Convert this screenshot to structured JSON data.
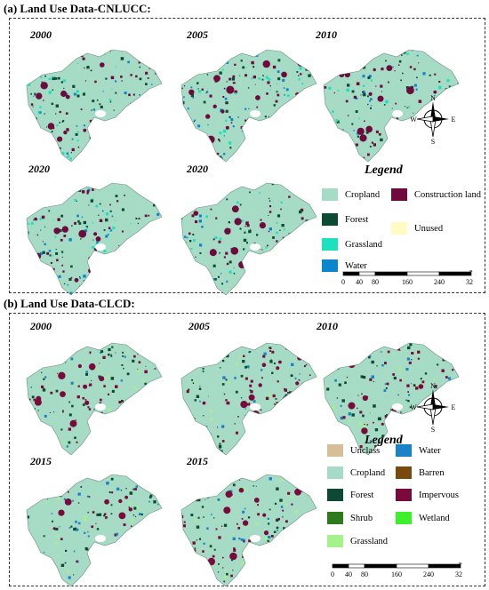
{
  "panel_a": {
    "title": "(a) Land Use Data-CNLUCC:",
    "years": [
      "2000",
      "2005",
      "2010",
      "2020",
      "2020"
    ],
    "legend_title": "Legend",
    "legend": [
      {
        "label": "Cropland",
        "color": "#a6dcc6"
      },
      {
        "label": "Construction land",
        "color": "#6e0a3c"
      },
      {
        "label": "Forest",
        "color": "#0e4a33"
      },
      {
        "label": "Unused",
        "color": "#fffbc4"
      },
      {
        "label": "Grassland",
        "color": "#1de0bd"
      },
      {
        "label": "Water",
        "color": "#0a86cc"
      }
    ],
    "scale": {
      "unit": "km",
      "ticks": [
        "0",
        "40",
        "80",
        "160",
        "240",
        "320"
      ]
    }
  },
  "panel_b": {
    "title": "(b) Land Use Data-CLCD:",
    "years": [
      "2000",
      "2005",
      "2010",
      "2015",
      "2015"
    ],
    "legend_title": "Legend",
    "legend": [
      {
        "label": "Unclass",
        "color": "#d6bf98"
      },
      {
        "label": "Water",
        "color": "#1a82c6"
      },
      {
        "label": "Cropland",
        "color": "#a6dcc6"
      },
      {
        "label": "Barren",
        "color": "#7a4a0c"
      },
      {
        "label": "Forest",
        "color": "#0e4a33"
      },
      {
        "label": "Impervous",
        "color": "#7a0a3c"
      },
      {
        "label": "Shrub",
        "color": "#2e7a1c"
      },
      {
        "label": "Wetland",
        "color": "#3cf02a"
      },
      {
        "label": "Grassland",
        "color": "#a6f28a"
      }
    ],
    "scale": {
      "unit": "km",
      "ticks": [
        "0",
        "40",
        "80",
        "160",
        "240",
        "320"
      ]
    }
  },
  "compass": {
    "n": "N",
    "s": "S",
    "e": "E",
    "w": "W"
  }
}
